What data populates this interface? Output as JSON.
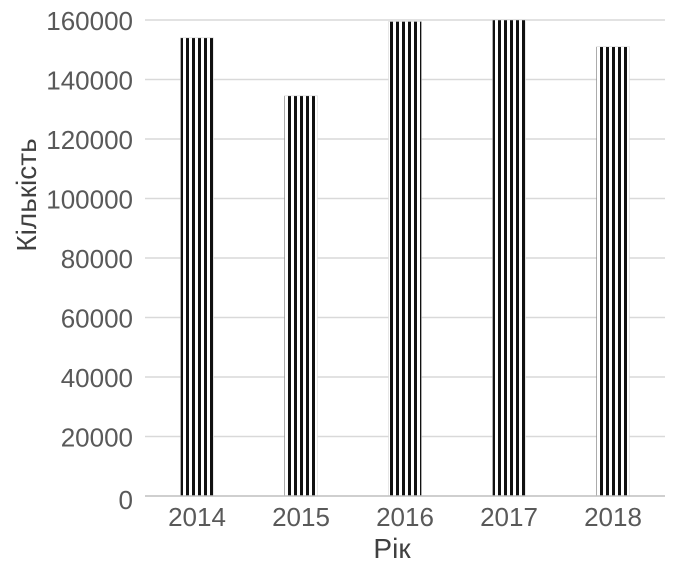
{
  "chart_data": {
    "type": "bar",
    "categories": [
      "2014",
      "2015",
      "2016",
      "2017",
      "2018"
    ],
    "values": [
      154000,
      134500,
      159500,
      163000,
      151000
    ],
    "xlabel": "Рік",
    "ylabel": "Кількість",
    "ylim": [
      0,
      160000
    ],
    "yticks": [
      0,
      20000,
      40000,
      60000,
      80000,
      100000,
      120000,
      140000,
      160000
    ],
    "grid": true,
    "legend": "none",
    "colors": {
      "bar_stripe_dark": "#111111",
      "bar_stripe_light": "#ffffff",
      "gridline": "#d9d9d9",
      "axis_line": "#bfbfbf",
      "tick_text": "#595959"
    }
  }
}
